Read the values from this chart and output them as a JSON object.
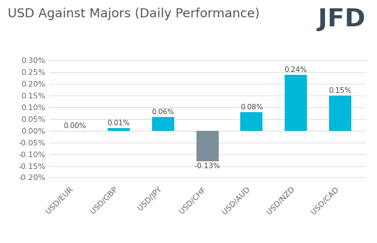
{
  "title": "USD Against Majors (Daily Performance)",
  "categories": [
    "USD/EUR",
    "USD/GBP",
    "USD/JPY",
    "USD/CHF",
    "USD/AUD",
    "USD/NZD",
    "USD/CAD"
  ],
  "values": [
    0.0,
    0.0001,
    0.0006,
    -0.0013,
    0.0008,
    0.0024,
    0.0015
  ],
  "labels": [
    "0.00%",
    "0.01%",
    "0.06%",
    "-0.13%",
    "0.08%",
    "0.24%",
    "0.15%"
  ],
  "bar_colors": [
    "#00b8d9",
    "#00b8d9",
    "#00b8d9",
    "#7a8f99",
    "#00b8d9",
    "#00b8d9",
    "#00b8d9"
  ],
  "ylim": [
    -0.0022,
    0.0033
  ],
  "yticks": [
    -0.002,
    -0.0015,
    -0.001,
    -0.0005,
    0.0,
    0.0005,
    0.001,
    0.0015,
    0.002,
    0.0025,
    0.003
  ],
  "ytick_labels": [
    "-0.20%",
    "-0.15%",
    "-0.10%",
    "-0.05%",
    "0.00%",
    "0.05%",
    "0.10%",
    "0.15%",
    "0.20%",
    "0.25%",
    "0.30%"
  ],
  "background_color": "#ffffff",
  "grid_color": "#d8d8d8",
  "title_fontsize": 13,
  "tick_fontsize": 8,
  "bar_label_fontsize": 7.5,
  "logo_text": "JFD",
  "logo_fontsize": 26,
  "logo_color": "#3a4a57"
}
